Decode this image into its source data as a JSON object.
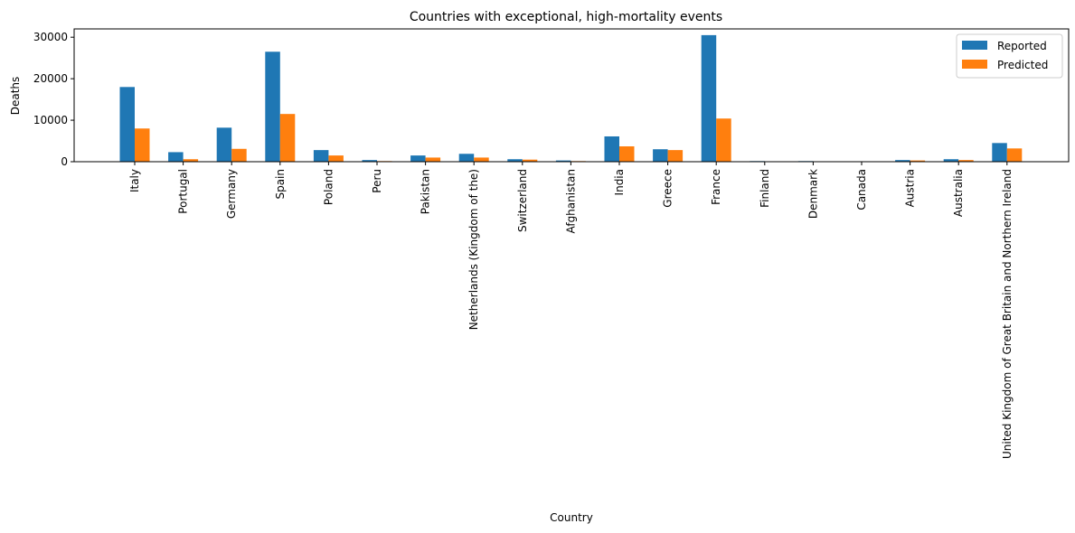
{
  "chart_data": {
    "type": "bar",
    "title": "Countries with exceptional, high-mortality events",
    "xlabel": "Country",
    "ylabel": "Deaths",
    "ylim": [
      0,
      32000
    ],
    "yticks": [
      0,
      10000,
      20000,
      30000
    ],
    "legend_position": "top-right",
    "categories": [
      "Italy",
      "Portugal",
      "Germany",
      "Spain",
      "Poland",
      "Peru",
      "Pakistan",
      "Netherlands (Kingdom of the)",
      "Switzerland",
      "Afghanistan",
      "India",
      "Greece",
      "France",
      "Finland",
      "Denmark",
      "Canada",
      "Austria",
      "Australia",
      "United Kingdom of Great Britain and Northern Ireland"
    ],
    "series": [
      {
        "name": "Reported",
        "color": "#1f77b4",
        "values": [
          18000,
          2300,
          8200,
          26500,
          2800,
          400,
          1500,
          1900,
          600,
          300,
          6100,
          3000,
          30500,
          150,
          150,
          100,
          400,
          600,
          4500
        ]
      },
      {
        "name": "Predicted",
        "color": "#ff7f0e",
        "values": [
          8000,
          600,
          3100,
          11500,
          1500,
          150,
          1000,
          1000,
          500,
          150,
          3700,
          2800,
          10400,
          100,
          100,
          0,
          300,
          400,
          3200
        ]
      }
    ]
  }
}
